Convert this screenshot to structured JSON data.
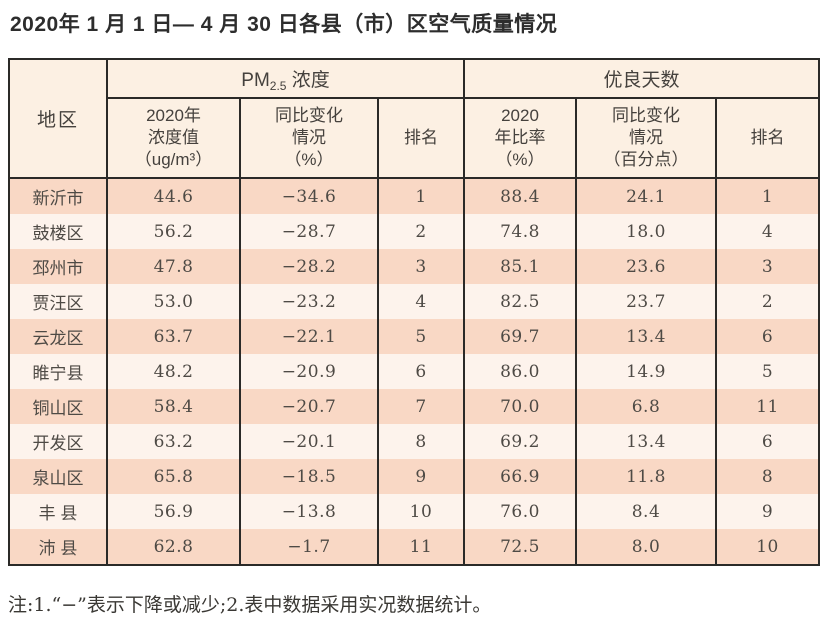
{
  "title": "2020年 1 月 1 日— 4 月 30 日各县（市）区空气质量情况",
  "table": {
    "header": {
      "region": "地区",
      "pm_group": {
        "prefix": "PM",
        "sub": "2.5",
        "suffix": " 浓度"
      },
      "good_days_group": "优良天数",
      "pm_value_col": "2020年\n浓度值\n（ug/m³）",
      "pm_change_col": "同比变化\n情况\n（%）",
      "pm_rank_col": "排名",
      "gd_ratio_col": "2020\n年比率\n（%）",
      "gd_change_col": "同比变化\n情况\n（百分点）",
      "gd_rank_col": "排名"
    },
    "rows": [
      {
        "region": "新沂市",
        "pm_value": "44.6",
        "pm_change": "−34.6",
        "pm_rank": "1",
        "gd_ratio": "88.4",
        "gd_change": "24.1",
        "gd_rank": "1"
      },
      {
        "region": "鼓楼区",
        "pm_value": "56.2",
        "pm_change": "−28.7",
        "pm_rank": "2",
        "gd_ratio": "74.8",
        "gd_change": "18.0",
        "gd_rank": "4"
      },
      {
        "region": "邳州市",
        "pm_value": "47.8",
        "pm_change": "−28.2",
        "pm_rank": "3",
        "gd_ratio": "85.1",
        "gd_change": "23.6",
        "gd_rank": "3"
      },
      {
        "region": "贾汪区",
        "pm_value": "53.0",
        "pm_change": "−23.2",
        "pm_rank": "4",
        "gd_ratio": "82.5",
        "gd_change": "23.7",
        "gd_rank": "2"
      },
      {
        "region": "云龙区",
        "pm_value": "63.7",
        "pm_change": "−22.1",
        "pm_rank": "5",
        "gd_ratio": "69.7",
        "gd_change": "13.4",
        "gd_rank": "6"
      },
      {
        "region": "睢宁县",
        "pm_value": "48.2",
        "pm_change": "−20.9",
        "pm_rank": "6",
        "gd_ratio": "86.0",
        "gd_change": "14.9",
        "gd_rank": "5"
      },
      {
        "region": "铜山区",
        "pm_value": "58.4",
        "pm_change": "−20.7",
        "pm_rank": "7",
        "gd_ratio": "70.0",
        "gd_change": "6.8",
        "gd_rank": "11"
      },
      {
        "region": "开发区",
        "pm_value": "63.2",
        "pm_change": "−20.1",
        "pm_rank": "8",
        "gd_ratio": "69.2",
        "gd_change": "13.4",
        "gd_rank": "6"
      },
      {
        "region": "泉山区",
        "pm_value": "65.8",
        "pm_change": "−18.5",
        "pm_rank": "9",
        "gd_ratio": "66.9",
        "gd_change": "11.8",
        "gd_rank": "8"
      },
      {
        "region": "丰 县",
        "pm_value": "56.9",
        "pm_change": "−13.8",
        "pm_rank": "10",
        "gd_ratio": "76.0",
        "gd_change": "8.4",
        "gd_rank": "9"
      },
      {
        "region": "沛 县",
        "pm_value": "62.8",
        "pm_change": "−1.7",
        "pm_rank": "11",
        "gd_ratio": "72.5",
        "gd_change": "8.0",
        "gd_rank": "10"
      }
    ]
  },
  "note": "注:1.“−”表示下降或减少;2.表中数据采用实况数据统计。",
  "colors": {
    "row_dark": "#f9d8c5",
    "row_light": "#fdf3ec",
    "header_bg": "#fcf0e3",
    "border": "#2b2a28",
    "text": "#4e4a45"
  }
}
